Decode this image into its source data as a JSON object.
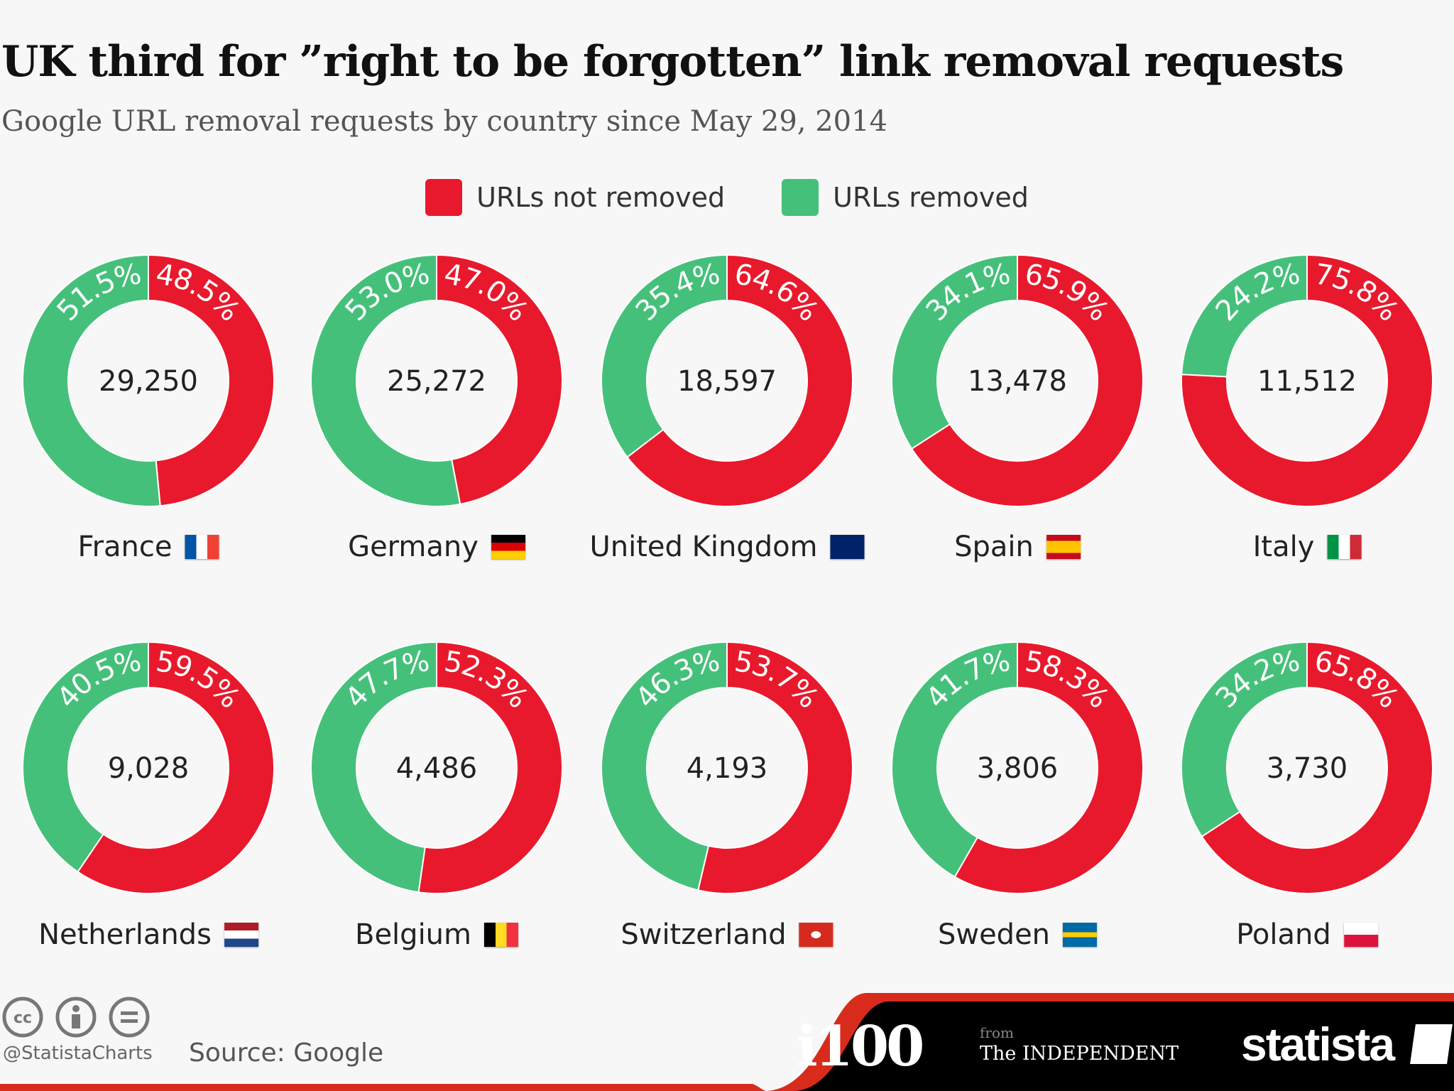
{
  "chart_data": {
    "type": "donut",
    "title": "UK third for ”right to be forgotten” link removal requests",
    "subtitle": "Google URL removal requests by country since May 29, 2014",
    "legend": [
      {
        "name": "URLs not removed",
        "color": "#e8192c"
      },
      {
        "name": "URLs removed",
        "color": "#45c07a"
      }
    ],
    "legend_position": "top-center",
    "items": [
      {
        "country": "France",
        "total": "29,250",
        "not_removed": 48.5,
        "removed": 51.5,
        "flag": "france"
      },
      {
        "country": "Germany",
        "total": "25,272",
        "not_removed": 47.0,
        "removed": 53.0,
        "flag": "germany"
      },
      {
        "country": "United Kingdom",
        "total": "18,597",
        "not_removed": 64.6,
        "removed": 35.4,
        "flag": "uk"
      },
      {
        "country": "Spain",
        "total": "13,478",
        "not_removed": 65.9,
        "removed": 34.1,
        "flag": "spain"
      },
      {
        "country": "Italy",
        "total": "11,512",
        "not_removed": 75.8,
        "removed": 24.2,
        "flag": "italy"
      },
      {
        "country": "Netherlands",
        "total": "9,028",
        "not_removed": 59.5,
        "removed": 40.5,
        "flag": "netherlands"
      },
      {
        "country": "Belgium",
        "total": "4,486",
        "not_removed": 52.3,
        "removed": 47.7,
        "flag": "belgium"
      },
      {
        "country": "Switzerland",
        "total": "4,193",
        "not_removed": 53.7,
        "removed": 46.3,
        "flag": "switzerland"
      },
      {
        "country": "Sweden",
        "total": "3,806",
        "not_removed": 58.3,
        "removed": 41.7,
        "flag": "sweden"
      },
      {
        "country": "Poland",
        "total": "3,730",
        "not_removed": 65.8,
        "removed": 34.2,
        "flag": "poland"
      }
    ]
  },
  "footer": {
    "handle": "@StatistaCharts",
    "source": "Source: Google",
    "logo_i100": "i100",
    "from": "from",
    "independent": "The INDEPENDENT",
    "statista": "statista",
    "license_icons": [
      "cc-icon",
      "by-icon",
      "nd-icon"
    ]
  }
}
